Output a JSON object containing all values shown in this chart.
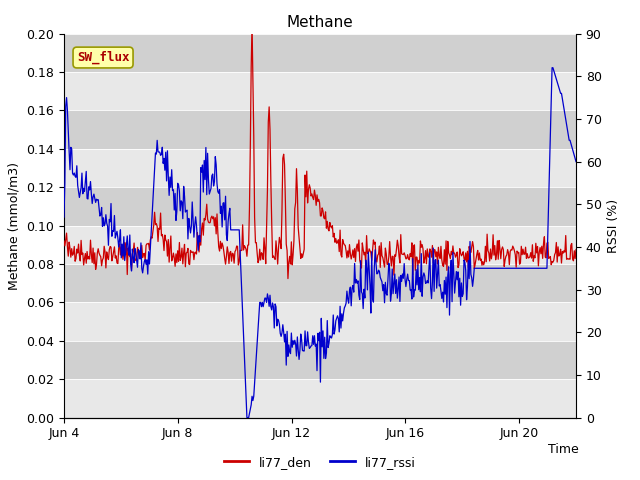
{
  "title": "Methane",
  "xlabel": "Time",
  "ylabel_left": "Methane (mmol/m3)",
  "ylabel_right": "RSSI (%)",
  "ylim_left": [
    0.0,
    0.2
  ],
  "ylim_right": [
    0,
    90
  ],
  "yticks_left": [
    0.0,
    0.02,
    0.04,
    0.06,
    0.08,
    0.1,
    0.12,
    0.14,
    0.16,
    0.18,
    0.2
  ],
  "yticks_right": [
    0,
    10,
    20,
    30,
    40,
    50,
    60,
    70,
    80,
    90
  ],
  "xtick_labels": [
    "Jun 4",
    "Jun 8",
    "Jun 12",
    "Jun 16",
    "Jun 20"
  ],
  "xtick_positions": [
    0,
    4,
    8,
    12,
    16
  ],
  "xlim": [
    0,
    18
  ],
  "color_red": "#cc0000",
  "color_blue": "#0000cc",
  "bg_color": "#dcdcdc",
  "band_color_light": "#e8e8e8",
  "band_color_dark": "#d0d0d0",
  "legend_labels": [
    "li77_den",
    "li77_rssi"
  ],
  "annotation_text": "SW_flux",
  "annotation_bg": "#ffffaa",
  "annotation_border": "#999900",
  "title_fontsize": 11,
  "axis_fontsize": 9,
  "tick_fontsize": 9
}
